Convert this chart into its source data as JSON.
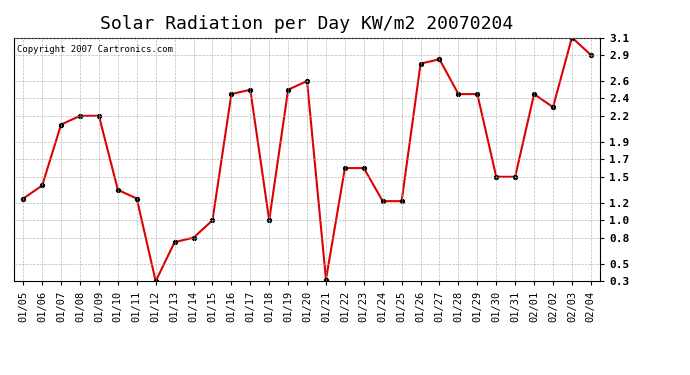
{
  "title": "Solar Radiation per Day KW/m2 20070204",
  "copyright": "Copyright 2007 Cartronics.com",
  "labels": [
    "01/05",
    "01/06",
    "01/07",
    "01/08",
    "01/09",
    "01/10",
    "01/11",
    "01/12",
    "01/13",
    "01/14",
    "01/15",
    "01/16",
    "01/17",
    "01/18",
    "01/19",
    "01/20",
    "01/21",
    "01/22",
    "01/23",
    "01/24",
    "01/25",
    "01/26",
    "01/27",
    "01/28",
    "01/29",
    "01/30",
    "01/31",
    "02/01",
    "02/02",
    "02/03",
    "02/04"
  ],
  "values": [
    1.25,
    1.4,
    2.1,
    2.2,
    2.2,
    1.35,
    1.25,
    0.3,
    0.75,
    0.8,
    1.0,
    2.45,
    2.5,
    1.0,
    2.5,
    2.6,
    0.32,
    1.6,
    1.6,
    1.22,
    1.22,
    2.8,
    2.85,
    2.45,
    2.45,
    1.5,
    1.5,
    2.45,
    2.3,
    3.1,
    2.9
  ],
  "line_color": "#dd0000",
  "marker": "o",
  "marker_color": "#000000",
  "bg_color": "#ffffff",
  "plot_bg_color": "#ffffff",
  "grid_color": "#aaaaaa",
  "ylim_min": 0.3,
  "ylim_max": 3.1,
  "ytick_positions": [
    0.3,
    0.5,
    0.8,
    1.0,
    1.2,
    1.5,
    1.7,
    1.9,
    2.2,
    2.4,
    2.6,
    2.9,
    3.1
  ],
  "ytick_labels": [
    "0.3",
    "0.5",
    "0.8",
    "1.0",
    "1.2",
    "1.5",
    "1.7",
    "1.9",
    "2.2",
    "2.4",
    "2.6",
    "2.9",
    "3.1"
  ],
  "title_fontsize": 13,
  "tick_fontsize": 7.5,
  "copyright_fontsize": 6.5
}
